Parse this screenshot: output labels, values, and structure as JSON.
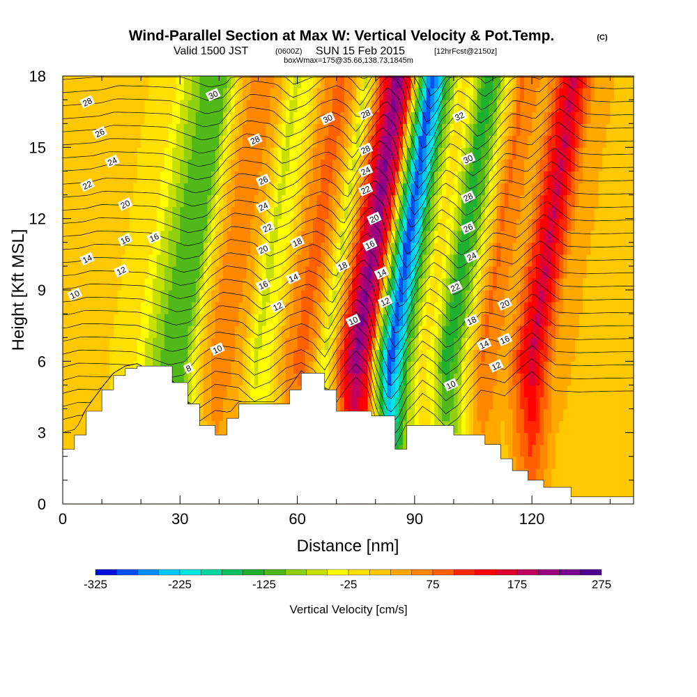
{
  "chart_data": {
    "type": "heatmap",
    "title": "Wind-Parallel Section at Max W: Vertical Velocity & Pot.Temp.",
    "title_mark": "(C)",
    "subtitle": {
      "valid": "Valid 1500 JST",
      "utc": "(0600Z)",
      "date": "SUN 15 Feb 2015",
      "forecast": "[12hrFcst@2150z]"
    },
    "box_note": "boxWmax=175@35.66,138.73,1845m",
    "xlabel": "Distance [nm]",
    "ylabel": "Height [Kft MSL]",
    "xlim": [
      0,
      146
    ],
    "ylim": [
      0,
      18
    ],
    "x_ticks": [
      "0",
      "30",
      "60",
      "90",
      "120"
    ],
    "y_ticks": [
      "0",
      "3",
      "6",
      "9",
      "12",
      "15",
      "18"
    ],
    "colorbar": {
      "label": "Vertical Velocity [cm/s]",
      "min": -325,
      "max": 275,
      "step": 25,
      "tick_labels": [
        "-325",
        "-225",
        "-125",
        "-25",
        "75",
        "175",
        "275"
      ],
      "colors": [
        "#0010d8",
        "#0050f0",
        "#0090f8",
        "#00c8f8",
        "#00e8e0",
        "#00d8a0",
        "#10c060",
        "#20b030",
        "#50b818",
        "#90d010",
        "#c8e000",
        "#ffff00",
        "#ffe000",
        "#ffc800",
        "#ffa800",
        "#ff8800",
        "#ff6000",
        "#ff2800",
        "#ff0000",
        "#e00030",
        "#c00060",
        "#9a0080",
        "#7a0090",
        "#500090"
      ]
    },
    "w_profile_cm_s": [
      {
        "x": 0,
        "w": 0
      },
      {
        "x": 4,
        "w": 20
      },
      {
        "x": 10,
        "w": 5
      },
      {
        "x": 18,
        "w": -20
      },
      {
        "x": 24,
        "w": -90
      },
      {
        "x": 27,
        "w": -125
      },
      {
        "x": 31,
        "w": -110
      },
      {
        "x": 35,
        "w": 10
      },
      {
        "x": 39,
        "w": 75
      },
      {
        "x": 45,
        "w": 40
      },
      {
        "x": 49,
        "w": -60
      },
      {
        "x": 53,
        "w": -25
      },
      {
        "x": 57,
        "w": 60
      },
      {
        "x": 61,
        "w": 90
      },
      {
        "x": 64,
        "w": 40
      },
      {
        "x": 67,
        "w": -60
      },
      {
        "x": 70,
        "w": 70
      },
      {
        "x": 73,
        "w": 175
      },
      {
        "x": 75,
        "w": 230
      },
      {
        "x": 78,
        "w": 140
      },
      {
        "x": 80,
        "w": -60
      },
      {
        "x": 82,
        "w": -200
      },
      {
        "x": 83.5,
        "w": -300
      },
      {
        "x": 86,
        "w": -225
      },
      {
        "x": 88,
        "w": -110
      },
      {
        "x": 90,
        "w": -60
      },
      {
        "x": 92,
        "w": 0
      },
      {
        "x": 95,
        "w": -60
      },
      {
        "x": 98,
        "w": -150
      },
      {
        "x": 101,
        "w": -100
      },
      {
        "x": 104,
        "w": 0
      },
      {
        "x": 107,
        "w": 80
      },
      {
        "x": 110,
        "w": 60
      },
      {
        "x": 113,
        "w": 30
      },
      {
        "x": 117,
        "w": 120
      },
      {
        "x": 120,
        "w": 180
      },
      {
        "x": 122,
        "w": 130
      },
      {
        "x": 126,
        "w": 40
      },
      {
        "x": 132,
        "w": 20
      },
      {
        "x": 140,
        "w": 10
      },
      {
        "x": 146,
        "w": 0
      }
    ],
    "terrain_kft": [
      {
        "x": 0,
        "h": 2.3
      },
      {
        "x": 3,
        "h": 2.9
      },
      {
        "x": 6,
        "h": 3.9
      },
      {
        "x": 10,
        "h": 4.8
      },
      {
        "x": 13,
        "h": 5.4
      },
      {
        "x": 16,
        "h": 5.7
      },
      {
        "x": 19,
        "h": 5.8
      },
      {
        "x": 28,
        "h": 5.1
      },
      {
        "x": 32,
        "h": 4.2
      },
      {
        "x": 35,
        "h": 3.3
      },
      {
        "x": 39,
        "h": 2.9
      },
      {
        "x": 42,
        "h": 3.6
      },
      {
        "x": 45,
        "h": 4.2
      },
      {
        "x": 54,
        "h": 4.2
      },
      {
        "x": 58,
        "h": 4.8
      },
      {
        "x": 61,
        "h": 5.5
      },
      {
        "x": 67,
        "h": 4.8
      },
      {
        "x": 70,
        "h": 3.9
      },
      {
        "x": 79,
        "h": 3.7
      },
      {
        "x": 85,
        "h": 2.3
      },
      {
        "x": 88,
        "h": 3.3
      },
      {
        "x": 100,
        "h": 2.9
      },
      {
        "x": 108,
        "h": 2.5
      },
      {
        "x": 112,
        "h": 1.9
      },
      {
        "x": 115,
        "h": 1.4
      },
      {
        "x": 119,
        "h": 1.0
      },
      {
        "x": 123,
        "h": 0.7
      },
      {
        "x": 130,
        "h": 0.3
      },
      {
        "x": 146,
        "h": 0.3
      }
    ],
    "theta_levels_c": [
      8,
      10,
      12,
      14,
      16,
      18,
      20,
      22,
      24,
      26,
      28,
      30,
      32
    ],
    "contour_labels": [
      {
        "text": "28",
        "x": 6.3,
        "y": 16.9
      },
      {
        "text": "26",
        "x": 9.5,
        "y": 15.6
      },
      {
        "text": "24",
        "x": 12.7,
        "y": 14.4
      },
      {
        "text": "22",
        "x": 6.3,
        "y": 13.4
      },
      {
        "text": "20",
        "x": 16.0,
        "y": 12.6
      },
      {
        "text": "16",
        "x": 23.4,
        "y": 11.2
      },
      {
        "text": "16",
        "x": 16.0,
        "y": 11.1
      },
      {
        "text": "14",
        "x": 6.3,
        "y": 10.3
      },
      {
        "text": "12",
        "x": 15.0,
        "y": 9.8
      },
      {
        "text": "10",
        "x": 3.1,
        "y": 8.8
      },
      {
        "text": "30",
        "x": 38.5,
        "y": 17.2
      },
      {
        "text": "28",
        "x": 49.2,
        "y": 15.3
      },
      {
        "text": "26",
        "x": 51.3,
        "y": 13.6
      },
      {
        "text": "24",
        "x": 51.3,
        "y": 12.5
      },
      {
        "text": "22",
        "x": 52.4,
        "y": 11.6
      },
      {
        "text": "20",
        "x": 51.3,
        "y": 10.7
      },
      {
        "text": "18",
        "x": 60.0,
        "y": 11.0
      },
      {
        "text": "16",
        "x": 51.3,
        "y": 9.2
      },
      {
        "text": "14",
        "x": 59.0,
        "y": 9.5
      },
      {
        "text": "12",
        "x": 55.0,
        "y": 8.3
      },
      {
        "text": "10",
        "x": 39.6,
        "y": 6.5
      },
      {
        "text": "8",
        "x": 32.2,
        "y": 5.7
      },
      {
        "text": "30",
        "x": 67.8,
        "y": 16.2
      },
      {
        "text": "28",
        "x": 77.5,
        "y": 16.4
      },
      {
        "text": "28",
        "x": 77.5,
        "y": 14.9
      },
      {
        "text": "24",
        "x": 77.5,
        "y": 14.0
      },
      {
        "text": "22",
        "x": 77.5,
        "y": 13.2
      },
      {
        "text": "20",
        "x": 79.7,
        "y": 12.0
      },
      {
        "text": "18",
        "x": 71.6,
        "y": 10.0
      },
      {
        "text": "16",
        "x": 78.6,
        "y": 10.9
      },
      {
        "text": "14",
        "x": 81.6,
        "y": 9.7
      },
      {
        "text": "12",
        "x": 82.5,
        "y": 8.5
      },
      {
        "text": "10",
        "x": 74.3,
        "y": 7.7
      },
      {
        "text": "32",
        "x": 101.5,
        "y": 16.3
      },
      {
        "text": "30",
        "x": 103.7,
        "y": 14.5
      },
      {
        "text": "28",
        "x": 103.7,
        "y": 12.9
      },
      {
        "text": "26",
        "x": 103.7,
        "y": 11.6
      },
      {
        "text": "24",
        "x": 104.6,
        "y": 10.4
      },
      {
        "text": "22",
        "x": 100.4,
        "y": 9.1
      },
      {
        "text": "20",
        "x": 113.1,
        "y": 8.4
      },
      {
        "text": "18",
        "x": 104.6,
        "y": 7.7
      },
      {
        "text": "16",
        "x": 113.1,
        "y": 6.9
      },
      {
        "text": "14",
        "x": 107.8,
        "y": 6.7
      },
      {
        "text": "12",
        "x": 110.9,
        "y": 5.8
      },
      {
        "text": "10",
        "x": 99.3,
        "y": 5.0
      }
    ]
  }
}
